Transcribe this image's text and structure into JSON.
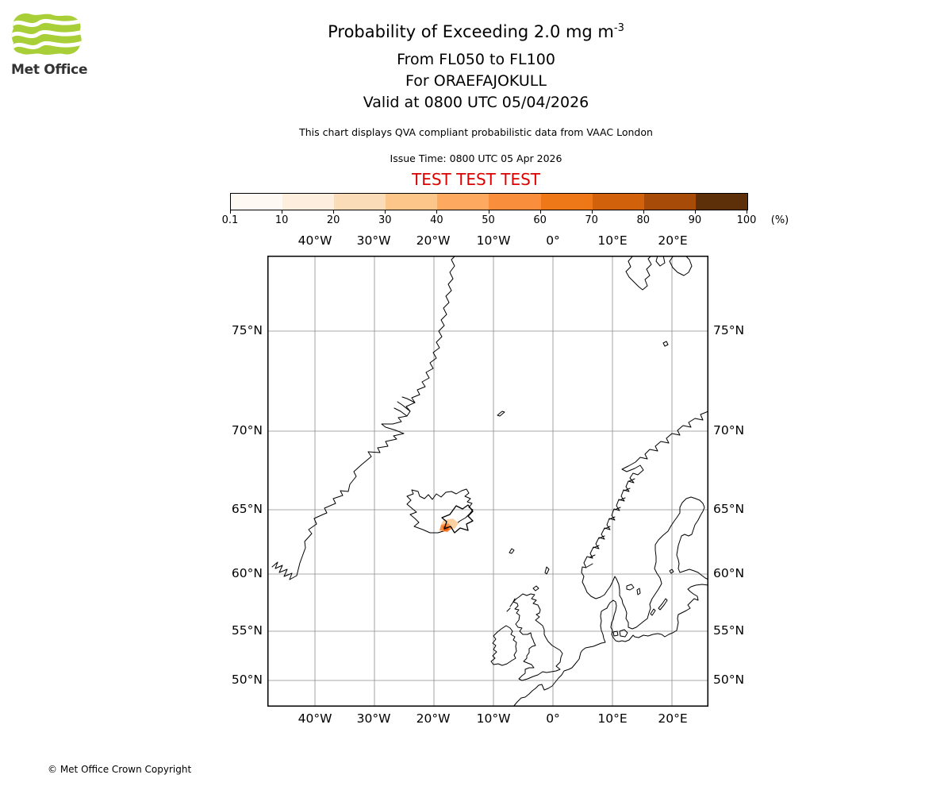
{
  "logo": {
    "text": "Met Office"
  },
  "header": {
    "title": "Probability of Exceeding 2.0 mg m",
    "title_sup": "-3",
    "subtitles": [
      "From FL050 to FL100",
      "For ORAEFAJOKULL",
      "Valid at 0800 UTC 05/04/2026"
    ],
    "description": "This chart displays QVA compliant probabilistic data from VAAC London",
    "issue_time": "Issue Time: 0800 UTC 05 Apr 2026",
    "test_banner": "TEST TEST TEST"
  },
  "colorbar": {
    "tick_labels": [
      "0.1",
      "10",
      "20",
      "30",
      "40",
      "50",
      "60",
      "70",
      "80",
      "90",
      "100"
    ],
    "unit": "(%)",
    "colors": [
      "#fff9f3",
      "#fdeedd",
      "#fbdcb9",
      "#fcc68b",
      "#fdaa60",
      "#f98e3d",
      "#ee7818",
      "#d2610b",
      "#a64c08",
      "#5e3009"
    ]
  },
  "map": {
    "lon_labels": [
      "40°W",
      "30°W",
      "20°W",
      "10°W",
      "0°",
      "10°E",
      "20°E"
    ],
    "lat_labels": [
      "75°N",
      "70°N",
      "65°N",
      "60°N",
      "55°N",
      "50°N"
    ],
    "ash_colors": {
      "light": "#fdd0a2",
      "mid": "#fd8d3c",
      "deep": "#e6550d"
    }
  },
  "footer": {
    "copyright": "© Met Office Crown Copyright"
  },
  "chart_data": {
    "type": "map",
    "title": "Probability of Exceeding 2.0 mg m-3",
    "legend_thresholds_percent": [
      0.1,
      10,
      20,
      30,
      40,
      50,
      60,
      70,
      80,
      90,
      100
    ],
    "legend_unit": "%",
    "lon_gridlines": [
      "40°W",
      "30°W",
      "20°W",
      "10°W",
      "0°",
      "10°E",
      "20°E"
    ],
    "lat_gridlines": [
      "75°N",
      "70°N",
      "65°N",
      "60°N",
      "55°N",
      "50°N"
    ]
  }
}
